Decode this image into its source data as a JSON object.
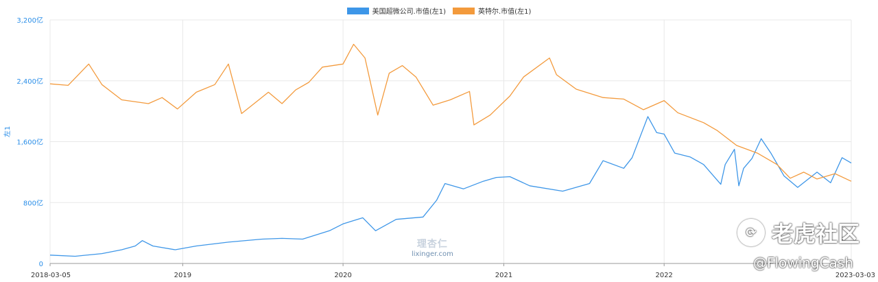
{
  "chart_data": {
    "type": "line",
    "ylabel": "左1",
    "ylim": [
      0,
      3200
    ],
    "yticks": [
      "0",
      "800亿",
      "1,600亿",
      "2,400亿",
      "3,200亿"
    ],
    "ytick_values": [
      0,
      800,
      1600,
      2400,
      3200
    ],
    "xlim": [
      "2018-03-05",
      "2023-03-03"
    ],
    "xticks": [
      "2018-03-05",
      "2019",
      "2020",
      "2021",
      "2022",
      "2023-03-03"
    ],
    "xtick_dates": [
      "2018-03-05",
      "2019-01-01",
      "2020-01-01",
      "2021-01-01",
      "2022-01-01",
      "2023-03-03"
    ],
    "grid": true,
    "legend_position": "top-center",
    "series": [
      {
        "name": "美国超微公司.市值(左1)",
        "color": "#3d96e8",
        "points": [
          [
            "2018-03-05",
            110
          ],
          [
            "2018-05-01",
            95
          ],
          [
            "2018-07-01",
            130
          ],
          [
            "2018-08-15",
            180
          ],
          [
            "2018-09-15",
            230
          ],
          [
            "2018-10-01",
            300
          ],
          [
            "2018-10-25",
            230
          ],
          [
            "2018-12-15",
            180
          ],
          [
            "2019-02-01",
            230
          ],
          [
            "2019-04-15",
            280
          ],
          [
            "2019-07-01",
            320
          ],
          [
            "2019-08-15",
            330
          ],
          [
            "2019-10-01",
            320
          ],
          [
            "2019-12-01",
            430
          ],
          [
            "2020-01-01",
            520
          ],
          [
            "2020-02-15",
            600
          ],
          [
            "2020-03-15",
            430
          ],
          [
            "2020-05-01",
            580
          ],
          [
            "2020-07-01",
            610
          ],
          [
            "2020-08-01",
            830
          ],
          [
            "2020-08-20",
            1050
          ],
          [
            "2020-10-01",
            980
          ],
          [
            "2020-11-15",
            1080
          ],
          [
            "2020-12-15",
            1130
          ],
          [
            "2021-01-15",
            1140
          ],
          [
            "2021-03-01",
            1020
          ],
          [
            "2021-05-15",
            950
          ],
          [
            "2021-07-15",
            1050
          ],
          [
            "2021-08-15",
            1350
          ],
          [
            "2021-10-01",
            1250
          ],
          [
            "2021-10-20",
            1390
          ],
          [
            "2021-11-25",
            1930
          ],
          [
            "2021-12-15",
            1720
          ],
          [
            "2022-01-01",
            1700
          ],
          [
            "2022-01-25",
            1450
          ],
          [
            "2022-03-01",
            1400
          ],
          [
            "2022-04-01",
            1300
          ],
          [
            "2022-05-10",
            1040
          ],
          [
            "2022-05-20",
            1300
          ],
          [
            "2022-06-10",
            1500
          ],
          [
            "2022-06-20",
            1020
          ],
          [
            "2022-07-01",
            1250
          ],
          [
            "2022-07-20",
            1380
          ],
          [
            "2022-08-10",
            1640
          ],
          [
            "2022-09-01",
            1450
          ],
          [
            "2022-10-01",
            1150
          ],
          [
            "2022-11-01",
            1000
          ],
          [
            "2022-12-15",
            1200
          ],
          [
            "2023-01-15",
            1060
          ],
          [
            "2023-02-10",
            1390
          ],
          [
            "2023-03-03",
            1320
          ]
        ]
      },
      {
        "name": "英特尔.市值(左1)",
        "color": "#f39a3c",
        "points": [
          [
            "2018-03-05",
            2360
          ],
          [
            "2018-04-15",
            2340
          ],
          [
            "2018-06-01",
            2620
          ],
          [
            "2018-07-01",
            2350
          ],
          [
            "2018-08-15",
            2150
          ],
          [
            "2018-10-15",
            2100
          ],
          [
            "2018-11-15",
            2180
          ],
          [
            "2018-12-20",
            2030
          ],
          [
            "2019-02-01",
            2250
          ],
          [
            "2019-03-15",
            2350
          ],
          [
            "2019-04-15",
            2620
          ],
          [
            "2019-05-15",
            1970
          ],
          [
            "2019-07-15",
            2250
          ],
          [
            "2019-08-15",
            2100
          ],
          [
            "2019-09-15",
            2280
          ],
          [
            "2019-10-15",
            2380
          ],
          [
            "2019-11-15",
            2580
          ],
          [
            "2020-01-01",
            2620
          ],
          [
            "2020-01-25",
            2880
          ],
          [
            "2020-02-20",
            2700
          ],
          [
            "2020-03-20",
            1950
          ],
          [
            "2020-04-15",
            2500
          ],
          [
            "2020-05-15",
            2600
          ],
          [
            "2020-06-15",
            2450
          ],
          [
            "2020-07-24",
            2080
          ],
          [
            "2020-09-01",
            2150
          ],
          [
            "2020-10-15",
            2260
          ],
          [
            "2020-10-25",
            1820
          ],
          [
            "2020-12-01",
            1950
          ],
          [
            "2021-01-15",
            2200
          ],
          [
            "2021-02-15",
            2450
          ],
          [
            "2021-04-15",
            2700
          ],
          [
            "2021-05-01",
            2480
          ],
          [
            "2021-06-15",
            2290
          ],
          [
            "2021-08-15",
            2180
          ],
          [
            "2021-10-01",
            2160
          ],
          [
            "2021-11-15",
            2020
          ],
          [
            "2022-01-01",
            2140
          ],
          [
            "2022-02-01",
            1980
          ],
          [
            "2022-04-01",
            1850
          ],
          [
            "2022-05-01",
            1750
          ],
          [
            "2022-06-15",
            1550
          ],
          [
            "2022-08-01",
            1450
          ],
          [
            "2022-09-15",
            1300
          ],
          [
            "2022-10-15",
            1120
          ],
          [
            "2022-11-15",
            1200
          ],
          [
            "2022-12-15",
            1110
          ],
          [
            "2023-01-25",
            1180
          ],
          [
            "2023-03-03",
            1080
          ]
        ]
      }
    ]
  },
  "watermarks": {
    "lixinger_cn": "理杏仁",
    "lixinger_en": "lixinger.com",
    "tiger_text": "老虎社区",
    "handle": "@FlowingCash"
  }
}
